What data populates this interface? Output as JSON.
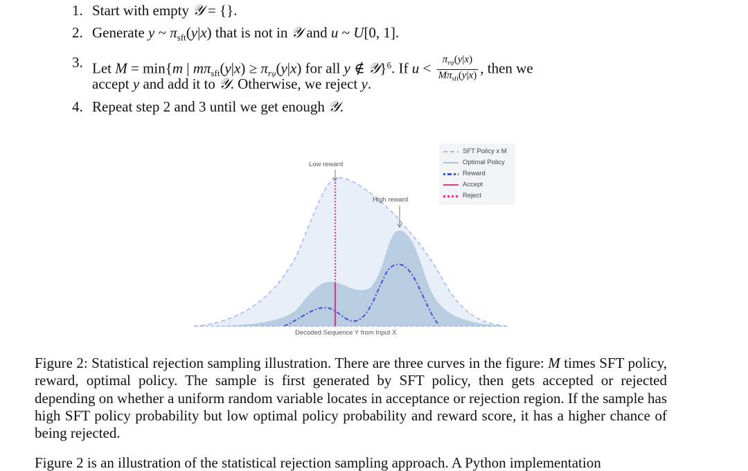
{
  "steps": [
    {
      "num": "1.",
      "text_a": "Start with empty ",
      "text_b": " = {}."
    },
    {
      "num": "2.",
      "text_a": "Generate ",
      "text_b": " that is not in ",
      "text_c": " and ",
      "text_d": " ~ ",
      "text_e": "[0, 1]."
    },
    {
      "num": "3.",
      "text_a": "Let ",
      "text_b": " = min{",
      "text_c": "for all ",
      "text_d": "}",
      "text_e": ". If ",
      "text_f": " <",
      "text_g": ", then we",
      "line2": "accept ",
      "line2_b": " and add it to ",
      "line2_c": ". Otherwise, we reject ",
      "line2_d": "."
    },
    {
      "num": "4.",
      "text_a": "Repeat step 2 and 3 until we get enough ",
      "text_b": "."
    }
  ],
  "math": {
    "y": "y",
    "x": "x",
    "u": "u",
    "M": "M",
    "m": "m",
    "U": "U",
    "Y": "𝒴",
    "pi": "π",
    "sft": "sft",
    "r": "r",
    "psi": "ψ",
    "footnote": "6"
  },
  "figure": {
    "label_low_reward": "Low reward",
    "label_high_reward": "High reward",
    "x_axis_label": "Decoded Sequence Y from Input X",
    "legend": [
      {
        "label": "SFT Policy x M",
        "color": "#a9b8f0",
        "style": "dashed"
      },
      {
        "label": "Optimal Policy",
        "color": "#a9c3df",
        "style": "solid"
      },
      {
        "label": "Reward",
        "color": "#4052d6",
        "style": "dashdot"
      },
      {
        "label": "Accept",
        "color": "#d63c8a",
        "style": "solid"
      },
      {
        "label": "Reject",
        "color": "#d63c8a",
        "style": "dotted"
      }
    ],
    "colors": {
      "sft_fill": "#e8eff9",
      "optimal_fill": "#b8cde0",
      "reward_line": "#4052d6",
      "accept_line": "#d63c8a"
    }
  },
  "caption": {
    "prefix": "Figure 2: Statistical rejection sampling illustration. There are three curves in the figure: ",
    "M": "M",
    "rest": " times SFT policy, reward, optimal policy. The sample is first generated by SFT policy, then gets accepted or rejected depending on whether a uniform random variable locates in acceptance or rejection region. If the sample has high SFT policy probability but low optimal policy probability and reward score, it has a higher chance of being rejected."
  },
  "cutoff_text": "Figure 2 is an illustration of the statistical rejection sampling approach. A Python implementation"
}
